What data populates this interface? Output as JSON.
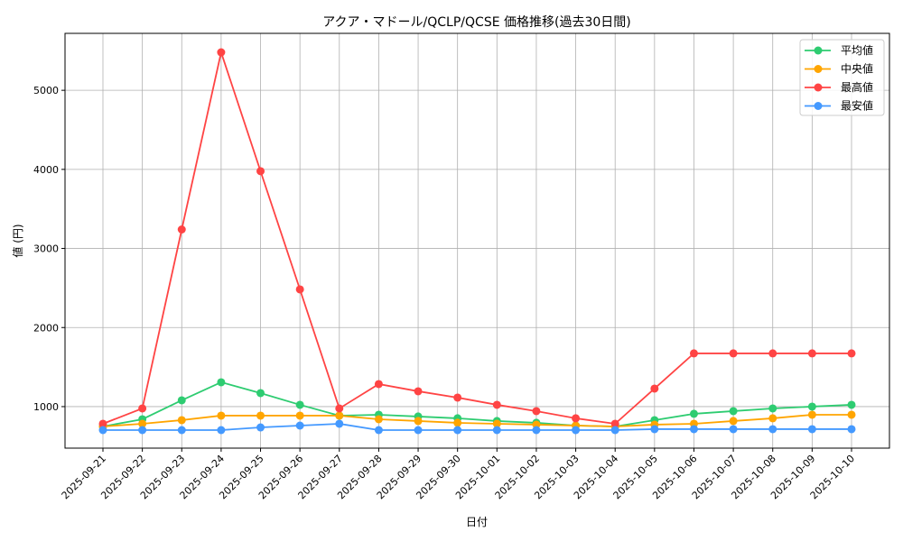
{
  "chart_data": {
    "type": "line",
    "title": "アクア・マドール/QCLP/QCSE 価格推移(過去30日間)",
    "xlabel": "日付",
    "ylabel": "値 (円)",
    "ylim": [
      475,
      5720
    ],
    "yticks": [
      1000,
      2000,
      3000,
      4000,
      5000
    ],
    "grid": true,
    "legend": "top-right",
    "x": [
      "2025-09-21",
      "2025-09-22",
      "2025-09-23",
      "2025-09-24",
      "2025-09-25",
      "2025-09-26",
      "2025-09-27",
      "2025-09-28",
      "2025-09-29",
      "2025-09-30",
      "2025-10-01",
      "2025-10-02",
      "2025-10-03",
      "2025-10-04",
      "2025-10-05",
      "2025-10-06",
      "2025-10-07",
      "2025-10-08",
      "2025-10-09",
      "2025-10-10"
    ],
    "series": [
      {
        "name": "平均値",
        "color": "#2ecc71",
        "values": [
          749,
          840,
          1080,
          1308,
          1171,
          1023,
          886,
          897,
          875,
          852,
          818,
          795,
          760,
          749,
          829,
          909,
          943,
          977,
          1000,
          1023
        ]
      },
      {
        "name": "中央値",
        "color": "#ffa500",
        "values": [
          749,
          783,
          829,
          886,
          886,
          886,
          886,
          840,
          818,
          795,
          783,
          772,
          760,
          749,
          772,
          783,
          818,
          852,
          897,
          897
        ]
      },
      {
        "name": "最高値",
        "color": "#ff4444",
        "values": [
          783,
          977,
          3240,
          5480,
          3977,
          2482,
          977,
          1285,
          1194,
          1114,
          1023,
          943,
          852,
          783,
          1228,
          1673,
          1673,
          1673,
          1673,
          1673
        ]
      },
      {
        "name": "最安値",
        "color": "#4499ff",
        "values": [
          703,
          703,
          703,
          703,
          737,
          760,
          783,
          703,
          703,
          703,
          703,
          703,
          703,
          703,
          715,
          715,
          715,
          715,
          715,
          715
        ]
      }
    ]
  }
}
